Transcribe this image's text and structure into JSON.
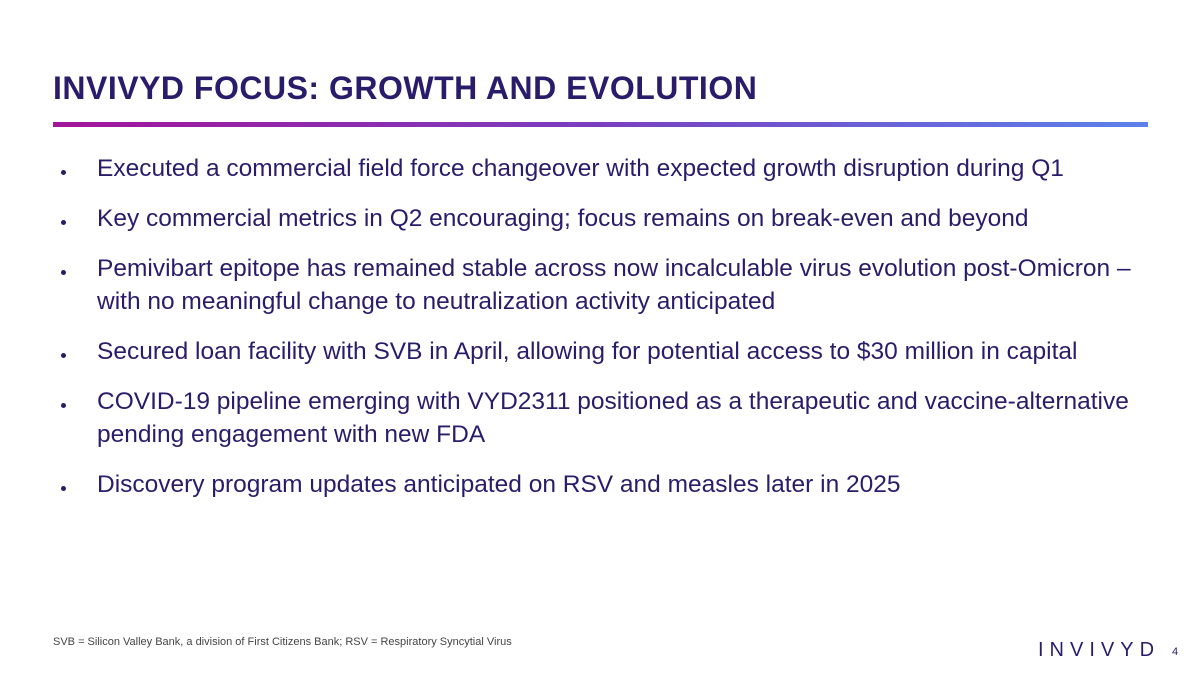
{
  "header": {
    "title": "INVIVYD FOCUS: GROWTH AND EVOLUTION"
  },
  "bullets": [
    "Executed a commercial field force changeover with expected growth disruption during Q1",
    "Key commercial metrics in Q2 encouraging; focus remains on break-even and beyond",
    "Pemivibart epitope has remained stable across now incalculable virus evolution post-Omicron – with no meaningful change to neutralization activity anticipated",
    "Secured loan facility with SVB in April, allowing for potential access to $30 million in capital",
    "COVID-19 pipeline emerging with VYD2311 positioned as a therapeutic and vaccine-alternative pending engagement with new FDA",
    "Discovery program updates anticipated on RSV and measles later in 2025"
  ],
  "footer": {
    "note": "SVB = Silicon Valley Bank, a division of First Citizens Bank; RSV = Respiratory Syncytial Virus",
    "logo": "INVIVYD",
    "page": "4"
  }
}
